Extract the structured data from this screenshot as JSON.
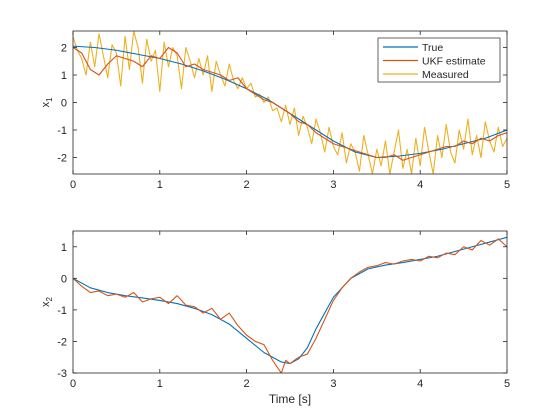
{
  "chart_data": [
    {
      "type": "line",
      "ylabel_main": "x",
      "ylabel_sub": "1",
      "xlabel": "",
      "xlim": [
        0,
        5
      ],
      "ylim": [
        -2.6,
        2.6
      ],
      "xticks": [
        0,
        1,
        2,
        3,
        4,
        5
      ],
      "xtick_labels": [
        "0",
        "1",
        "2",
        "3",
        "4",
        "5"
      ],
      "yticks": [
        2,
        1,
        0,
        -1,
        -2
      ],
      "ytick_labels": [
        "2",
        "1",
        "0",
        "-1",
        "-2"
      ],
      "grid": false,
      "legend": "top-right",
      "series": [
        {
          "name": "True",
          "color": "#0072BD",
          "x": [
            0,
            0.25,
            0.5,
            0.75,
            1.0,
            1.25,
            1.5,
            1.75,
            2.0,
            2.25,
            2.5,
            2.75,
            3.0,
            3.25,
            3.5,
            3.75,
            4.0,
            4.25,
            4.5,
            4.75,
            5.0
          ],
          "y": [
            2.05,
            2.0,
            1.9,
            1.75,
            1.6,
            1.4,
            1.15,
            0.85,
            0.5,
            0.1,
            -0.4,
            -0.9,
            -1.4,
            -1.8,
            -2.0,
            -1.95,
            -1.85,
            -1.7,
            -1.5,
            -1.3,
            -1.0
          ]
        },
        {
          "name": "UKF estimate",
          "color": "#D95319",
          "x": [
            0,
            0.1,
            0.2,
            0.3,
            0.4,
            0.5,
            0.6,
            0.7,
            0.8,
            0.9,
            1.0,
            1.1,
            1.2,
            1.3,
            1.4,
            1.5,
            1.6,
            1.7,
            1.8,
            1.9,
            2.0,
            2.1,
            2.2,
            2.3,
            2.4,
            2.5,
            2.6,
            2.7,
            2.8,
            2.9,
            3.0,
            3.1,
            3.2,
            3.3,
            3.4,
            3.5,
            3.6,
            3.7,
            3.8,
            3.9,
            4.0,
            4.1,
            4.2,
            4.3,
            4.4,
            4.5,
            4.6,
            4.7,
            4.8,
            4.9,
            5.0
          ],
          "y": [
            2.0,
            1.8,
            1.2,
            1.0,
            1.4,
            1.7,
            1.6,
            1.5,
            1.3,
            1.7,
            1.6,
            2.0,
            1.8,
            1.3,
            1.4,
            1.2,
            1.1,
            1.0,
            0.8,
            0.9,
            0.5,
            0.3,
            0.1,
            0.0,
            -0.2,
            -0.4,
            -0.7,
            -0.8,
            -1.1,
            -1.3,
            -1.5,
            -1.6,
            -1.7,
            -1.8,
            -1.9,
            -2.0,
            -2.0,
            -1.9,
            -2.1,
            -2.0,
            -1.9,
            -1.8,
            -1.7,
            -1.6,
            -1.6,
            -1.4,
            -1.5,
            -1.3,
            -1.4,
            -1.2,
            -1.1
          ]
        },
        {
          "name": "Measured",
          "color": "#EDB120",
          "x": [
            0,
            0.05,
            0.1,
            0.15,
            0.2,
            0.25,
            0.3,
            0.35,
            0.4,
            0.45,
            0.5,
            0.55,
            0.6,
            0.65,
            0.7,
            0.75,
            0.8,
            0.85,
            0.9,
            0.95,
            1.0,
            1.05,
            1.1,
            1.15,
            1.2,
            1.25,
            1.3,
            1.35,
            1.4,
            1.45,
            1.5,
            1.55,
            1.6,
            1.65,
            1.7,
            1.75,
            1.8,
            1.85,
            1.9,
            1.95,
            2.0,
            2.05,
            2.1,
            2.15,
            2.2,
            2.25,
            2.3,
            2.35,
            2.4,
            2.45,
            2.5,
            2.55,
            2.6,
            2.65,
            2.7,
            2.75,
            2.8,
            2.85,
            2.9,
            2.95,
            3.0,
            3.05,
            3.1,
            3.15,
            3.2,
            3.25,
            3.3,
            3.35,
            3.4,
            3.45,
            3.5,
            3.55,
            3.6,
            3.65,
            3.7,
            3.75,
            3.8,
            3.85,
            3.9,
            3.95,
            4.0,
            4.05,
            4.1,
            4.15,
            4.2,
            4.25,
            4.3,
            4.35,
            4.4,
            4.45,
            4.5,
            4.55,
            4.6,
            4.65,
            4.7,
            4.75,
            4.8,
            4.85,
            4.9,
            4.95,
            5.0
          ],
          "y": [
            2.4,
            1.9,
            1.6,
            1.0,
            2.2,
            1.3,
            2.5,
            1.7,
            0.9,
            2.1,
            1.8,
            0.6,
            2.4,
            1.2,
            2.6,
            2.0,
            0.7,
            2.3,
            1.5,
            1.9,
            0.4,
            2.2,
            1.3,
            2.0,
            1.7,
            0.5,
            2.0,
            1.5,
            0.9,
            1.6,
            1.0,
            1.7,
            0.4,
            1.5,
            1.0,
            0.6,
            1.4,
            0.8,
            0.5,
            0.9,
            0.5,
            0.7,
            0.2,
            0.3,
            0.0,
            0.2,
            -0.3,
            -0.2,
            -0.7,
            -0.1,
            -0.8,
            -0.2,
            -1.2,
            -0.5,
            -0.9,
            -1.5,
            -0.6,
            -1.1,
            -1.8,
            -0.9,
            -1.6,
            -1.9,
            -1.1,
            -2.2,
            -1.5,
            -1.8,
            -2.5,
            -1.2,
            -1.9,
            -2.6,
            -1.7,
            -2.3,
            -1.4,
            -2.6,
            -1.8,
            -1.0,
            -2.4,
            -1.7,
            -2.6,
            -1.3,
            -2.3,
            -0.9,
            -1.8,
            -2.6,
            -1.2,
            -2.0,
            -0.8,
            -1.8,
            -2.2,
            -1.0,
            -1.7,
            -0.6,
            -1.9,
            -1.2,
            -2.0,
            -0.7,
            -1.4,
            -1.8,
            -0.9,
            -1.6,
            -1.3
          ]
        }
      ]
    },
    {
      "type": "line",
      "ylabel_main": "x",
      "ylabel_sub": "2",
      "xlabel": "Time [s]",
      "xlim": [
        0,
        5
      ],
      "ylim": [
        -3,
        1.5
      ],
      "xticks": [
        0,
        1,
        2,
        3,
        4,
        5
      ],
      "xtick_labels": [
        "0",
        "1",
        "2",
        "3",
        "4",
        "5"
      ],
      "yticks": [
        1,
        0,
        -1,
        -2,
        -3
      ],
      "ytick_labels": [
        "1",
        "0",
        "-1",
        "-2",
        "-3"
      ],
      "grid": false,
      "series": [
        {
          "color": "#0072BD",
          "x": [
            0,
            0.2,
            0.4,
            0.6,
            0.8,
            1.0,
            1.2,
            1.4,
            1.6,
            1.8,
            2.0,
            2.2,
            2.4,
            2.5,
            2.6,
            2.7,
            2.8,
            3.0,
            3.2,
            3.4,
            3.6,
            3.8,
            4.0,
            4.2,
            4.4,
            4.6,
            4.8,
            5.0
          ],
          "y": [
            0.0,
            -0.3,
            -0.45,
            -0.55,
            -0.62,
            -0.7,
            -0.8,
            -0.95,
            -1.15,
            -1.45,
            -1.9,
            -2.35,
            -2.65,
            -2.7,
            -2.55,
            -2.2,
            -1.6,
            -0.6,
            0.0,
            0.3,
            0.42,
            0.5,
            0.6,
            0.7,
            0.85,
            1.0,
            1.15,
            1.3
          ]
        },
        {
          "color": "#D95319",
          "x": [
            0,
            0.1,
            0.2,
            0.3,
            0.4,
            0.5,
            0.6,
            0.7,
            0.8,
            0.9,
            1.0,
            1.1,
            1.2,
            1.3,
            1.4,
            1.5,
            1.6,
            1.7,
            1.8,
            1.9,
            2.0,
            2.1,
            2.2,
            2.3,
            2.4,
            2.45,
            2.5,
            2.6,
            2.7,
            2.8,
            2.9,
            3.0,
            3.1,
            3.2,
            3.3,
            3.4,
            3.5,
            3.6,
            3.7,
            3.8,
            3.9,
            4.0,
            4.1,
            4.2,
            4.3,
            4.4,
            4.5,
            4.6,
            4.7,
            4.8,
            4.9,
            5.0
          ],
          "y": [
            0.0,
            -0.25,
            -0.45,
            -0.4,
            -0.55,
            -0.5,
            -0.6,
            -0.45,
            -0.75,
            -0.65,
            -0.6,
            -0.8,
            -0.55,
            -0.85,
            -0.9,
            -1.1,
            -0.95,
            -1.3,
            -1.1,
            -1.5,
            -1.8,
            -2.0,
            -2.1,
            -2.6,
            -3.0,
            -2.6,
            -2.7,
            -2.5,
            -2.4,
            -1.9,
            -1.3,
            -0.7,
            -0.3,
            0.0,
            0.2,
            0.35,
            0.4,
            0.5,
            0.45,
            0.55,
            0.6,
            0.55,
            0.7,
            0.65,
            0.8,
            0.75,
            1.0,
            0.9,
            1.2,
            1.05,
            1.25,
            1.0
          ]
        }
      ]
    }
  ]
}
